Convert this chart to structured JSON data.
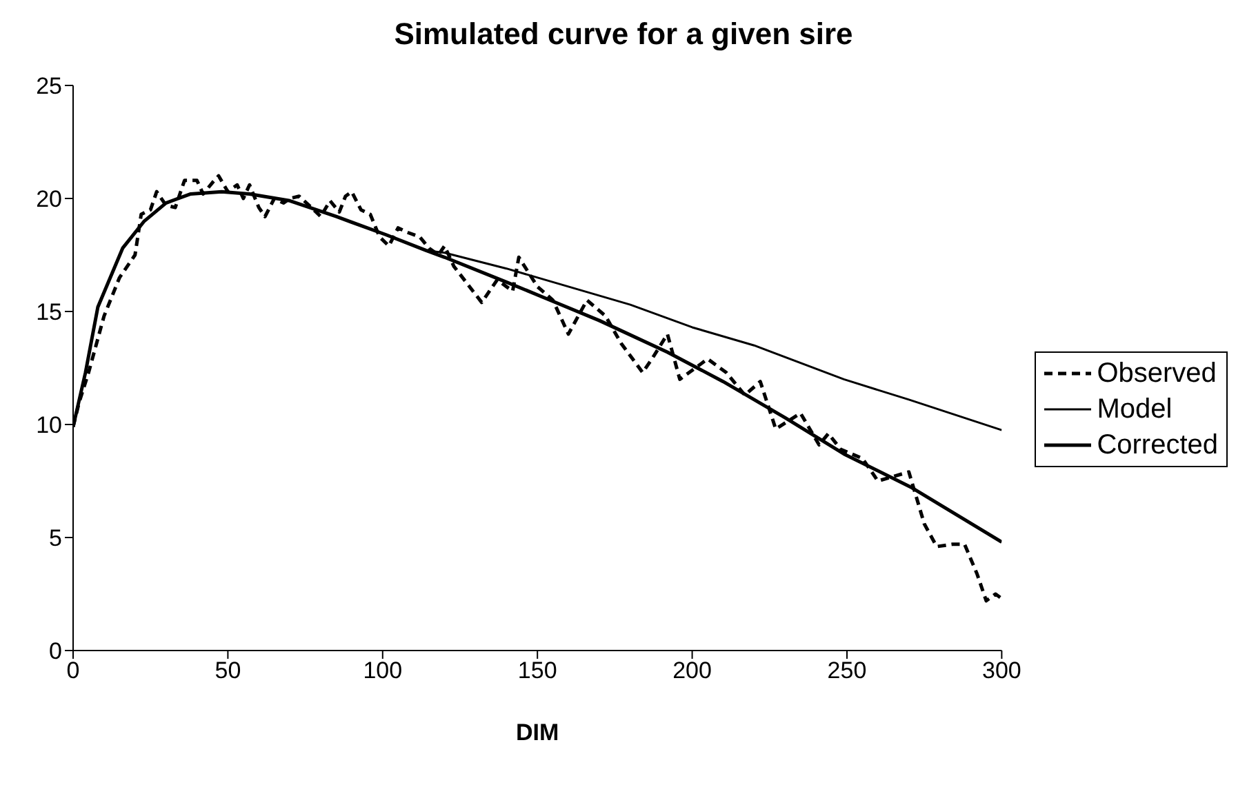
{
  "chart_data": {
    "type": "line",
    "title": "Simulated curve for a given sire",
    "xlabel": "DIM",
    "xlim": [
      0,
      300
    ],
    "xticks": [
      0,
      50,
      100,
      150,
      200,
      250,
      300
    ],
    "ylim": [
      0,
      25
    ],
    "yticks": [
      0,
      5,
      10,
      15,
      20,
      25
    ],
    "grid": false,
    "legend": "right",
    "marker": "none",
    "series": [
      {
        "name": "Observed",
        "color": "#000000",
        "line_style": "dashed",
        "x": [
          0,
          2,
          5,
          10,
          15,
          20,
          22,
          25,
          27,
          30,
          33,
          36,
          40,
          42,
          45,
          47,
          50,
          53,
          55,
          57,
          60,
          62,
          65,
          68,
          70,
          73,
          77,
          80,
          83,
          86,
          88,
          90,
          93,
          96,
          99,
          102,
          105,
          108,
          112,
          115,
          118,
          120,
          123,
          132,
          137,
          142,
          144,
          150,
          155,
          160,
          166,
          172,
          177,
          184,
          187,
          192,
          196,
          205,
          211,
          217,
          222,
          227,
          235,
          241,
          244,
          248,
          255,
          260,
          265,
          270,
          275,
          279,
          284,
          288,
          292,
          295,
          298,
          300
        ],
        "values": [
          9.9,
          11,
          12.3,
          14.8,
          16.5,
          17.5,
          19.3,
          19.5,
          20.3,
          19.7,
          19.6,
          20.8,
          20.8,
          20.2,
          20.7,
          21,
          20.3,
          20.6,
          20,
          20.6,
          19.6,
          19.2,
          20,
          19.8,
          20,
          20.1,
          19.6,
          19.2,
          19.9,
          19.4,
          20.1,
          20.3,
          19.5,
          19.3,
          18.3,
          17.9,
          18.7,
          18.5,
          18.3,
          17.8,
          17.5,
          17.9,
          17,
          15.4,
          16.4,
          15.9,
          17.4,
          16.1,
          15.5,
          14,
          15.5,
          14.8,
          13.6,
          12.3,
          12.9,
          14,
          12,
          12.9,
          12.3,
          11.3,
          11.9,
          9.8,
          10.5,
          9.1,
          9.6,
          8.9,
          8.5,
          7.5,
          7.7,
          7.9,
          5.6,
          4.6,
          4.7,
          4.7,
          3.4,
          2.2,
          2.5,
          2.3
        ]
      },
      {
        "name": "Model",
        "color": "#000000",
        "line_style": "solid",
        "x": [
          0,
          4,
          8,
          16,
          23,
          30,
          38,
          48,
          57,
          70,
          85,
          101,
          114,
          120,
          140,
          160,
          180,
          200,
          220,
          249,
          270,
          300
        ],
        "values": [
          9.9,
          12.3,
          15.2,
          17.8,
          19,
          19.8,
          20.2,
          20.3,
          20.2,
          19.9,
          19.2,
          18.4,
          17.7,
          17.6,
          16.9,
          16.1,
          15.3,
          14.3,
          13.5,
          12,
          11.1,
          9.75
        ]
      },
      {
        "name": "Corrected",
        "color": "#000000",
        "line_style": "solid",
        "x": [
          0,
          4,
          8,
          16,
          23,
          30,
          38,
          48,
          57,
          70,
          85,
          101,
          114,
          120,
          140,
          155,
          170,
          192,
          210,
          230,
          249,
          271,
          300
        ],
        "values": [
          9.9,
          12.3,
          15.2,
          17.8,
          19,
          19.8,
          20.2,
          20.3,
          20.2,
          19.9,
          19.2,
          18.4,
          17.7,
          17.4,
          16.3,
          15.45,
          14.6,
          13.2,
          11.9,
          10.3,
          8.7,
          7.2,
          4.8
        ]
      }
    ]
  }
}
